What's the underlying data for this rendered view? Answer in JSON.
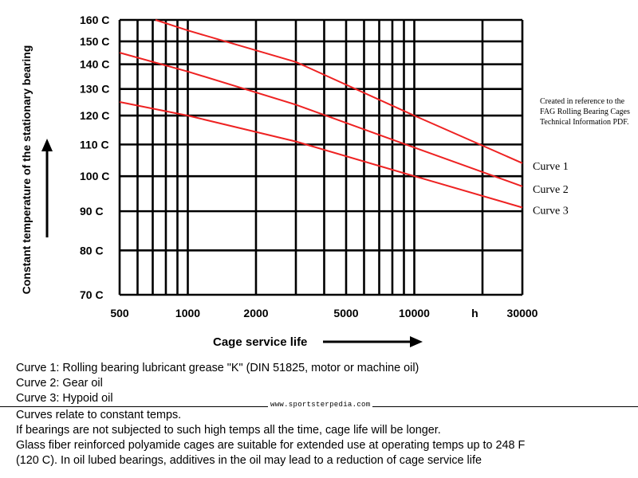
{
  "chart_data": {
    "type": "line",
    "ylabel": "Constant temperature of the stationary bearing",
    "xlabel": "Cage service life",
    "x_unit": "h",
    "x_scale": "log",
    "xlim": [
      500,
      30000
    ],
    "ylim": [
      70,
      160
    ],
    "x_ticks": [
      {
        "value": 500,
        "label": "500"
      },
      {
        "value": 1000,
        "label": "1000"
      },
      {
        "value": 2000,
        "label": "2000"
      },
      {
        "value": 5000,
        "label": "5000"
      },
      {
        "value": 10000,
        "label": "10000"
      },
      {
        "value": 30000,
        "label": "30000"
      }
    ],
    "y_ticks": [
      {
        "value": 70,
        "label": "70 C"
      },
      {
        "value": 80,
        "label": "80 C"
      },
      {
        "value": 90,
        "label": "90 C"
      },
      {
        "value": 100,
        "label": "100 C"
      },
      {
        "value": 110,
        "label": "110 C"
      },
      {
        "value": 120,
        "label": "120 C"
      },
      {
        "value": 130,
        "label": "130 C"
      },
      {
        "value": 140,
        "label": "140 C"
      },
      {
        "value": 150,
        "label": "150 C"
      },
      {
        "value": 160,
        "label": "160 C"
      }
    ],
    "series": [
      {
        "name": "Curve 1",
        "color": "#ee2222",
        "points": [
          [
            720,
            160
          ],
          [
            1000,
            155
          ],
          [
            3000,
            141
          ],
          [
            10000,
            120
          ],
          [
            30000,
            104
          ]
        ]
      },
      {
        "name": "Curve 2",
        "color": "#ee2222",
        "points": [
          [
            500,
            145
          ],
          [
            1000,
            137
          ],
          [
            3000,
            124
          ],
          [
            10000,
            109
          ],
          [
            30000,
            97
          ]
        ]
      },
      {
        "name": "Curve 3",
        "color": "#ee2222",
        "points": [
          [
            500,
            125
          ],
          [
            1000,
            120
          ],
          [
            3000,
            111
          ],
          [
            10000,
            100
          ],
          [
            30000,
            91
          ]
        ]
      }
    ],
    "grid": true,
    "legend": "right"
  },
  "note": "Created in reference to the FAG Rolling Bearing Cages Technical Information PDF.",
  "watermark": "www.sportsterpedia.com",
  "footer_lines": [
    "Curve 1: Rolling bearing lubricant grease \"K\" (DIN 51825, motor or machine oil)",
    "Curve 2: Gear oil",
    "Curve 3: Hypoid oil",
    "Curves relate to constant temps.",
    "If bearings are not subjected to such high temps all the time, cage life will be longer.",
    "Glass fiber reinforced polyamide cages are suitable for extended use at operating temps up to 248 F",
    "(120 C). In oil lubed bearings, additives in the oil may lead to a reduction of cage service life"
  ],
  "colors": {
    "curve": "#ee2222",
    "grid": "#000000"
  }
}
